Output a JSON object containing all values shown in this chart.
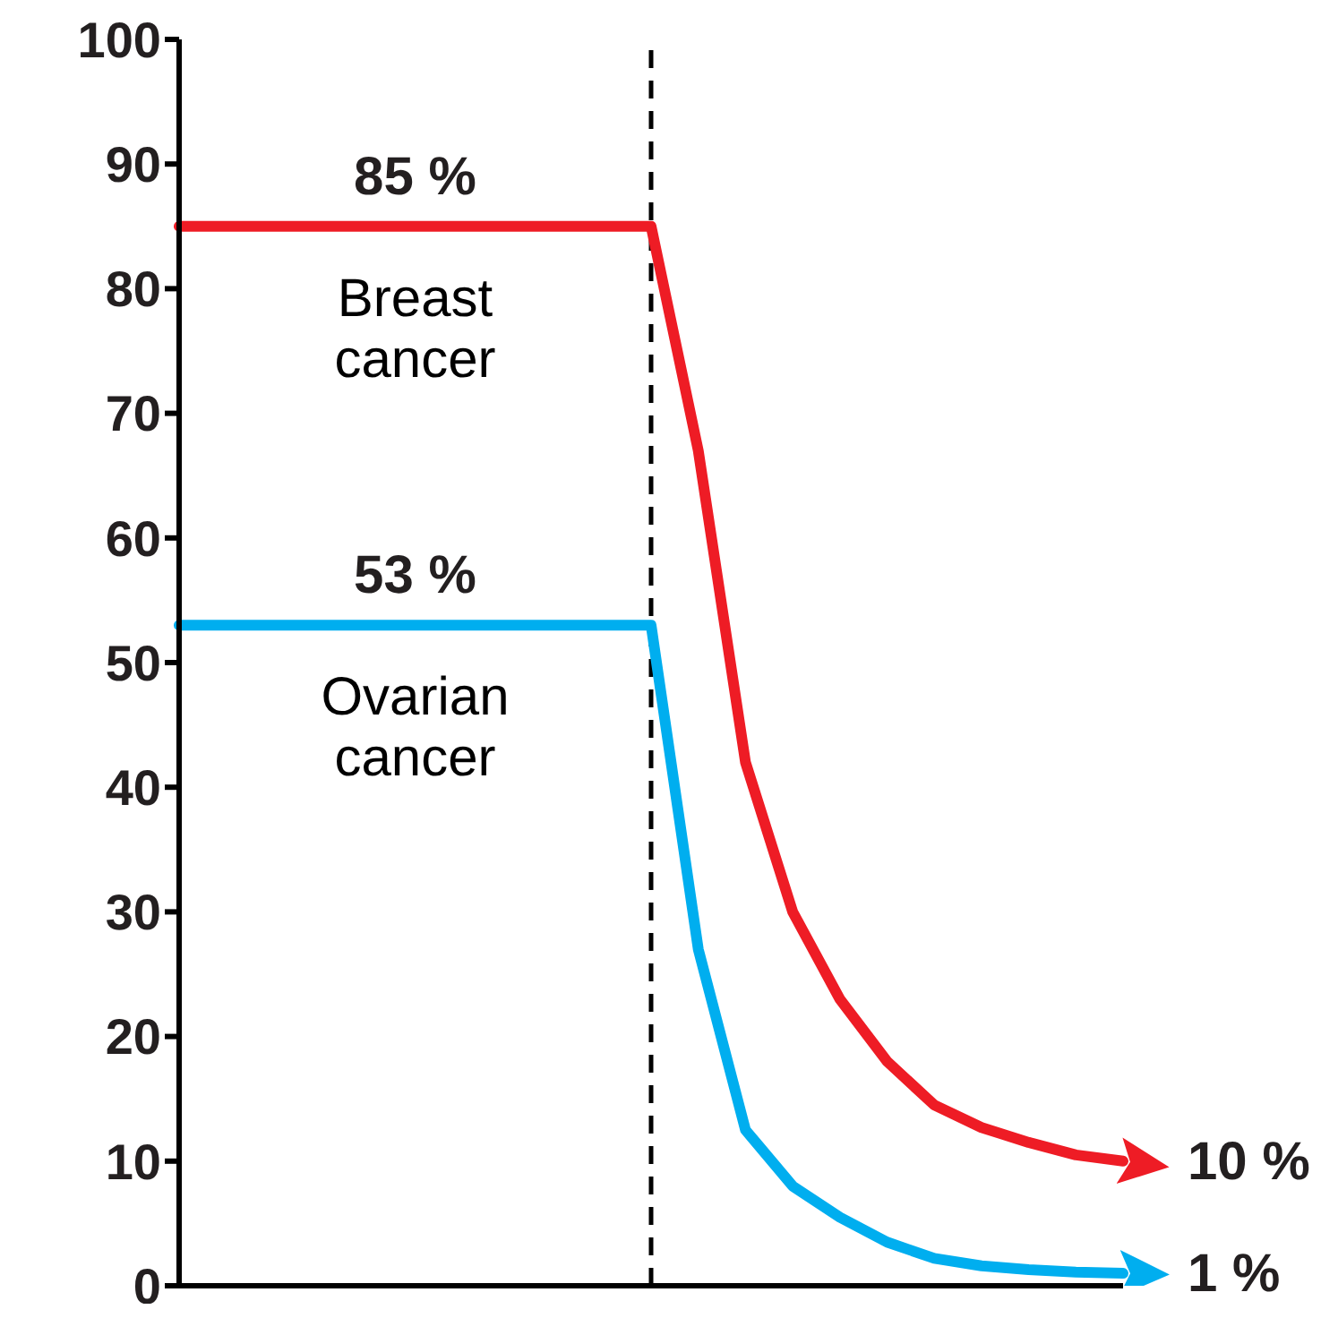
{
  "chart_data": {
    "type": "line",
    "categories": [
      null,
      null,
      null,
      null,
      null,
      null,
      null,
      null,
      null,
      null,
      null,
      null,
      null,
      null,
      null,
      null,
      null,
      null,
      null,
      null,
      null
    ],
    "ylim": [
      0,
      100
    ],
    "yticks": [
      0,
      10,
      20,
      30,
      40,
      50,
      60,
      70,
      80,
      90,
      100
    ],
    "tick_labels": "y",
    "grid": false,
    "legend": false,
    "marker": "none",
    "line_style": "solid",
    "series": [
      {
        "name": "Breast cancer",
        "color": "#ee1c25",
        "values": [
          85,
          85,
          85,
          85,
          85,
          85,
          85,
          85,
          85,
          85,
          85,
          67,
          42,
          30,
          23,
          18,
          14.5,
          12.7,
          11.5,
          10.5,
          10
        ],
        "value_labels": [
          null,
          null,
          null,
          null,
          null,
          "85 %",
          null,
          null,
          null,
          null,
          null,
          null,
          null,
          null,
          null,
          null,
          null,
          null,
          null,
          null,
          "10 %"
        ]
      },
      {
        "name": "Ovarian cancer",
        "color": "#00aeef",
        "values": [
          53,
          53,
          53,
          53,
          53,
          53,
          53,
          53,
          53,
          53,
          53,
          27,
          12.5,
          8,
          5.5,
          3.5,
          2.2,
          1.6,
          1.3,
          1.1,
          1
        ],
        "value_labels": [
          null,
          null,
          null,
          null,
          null,
          "53 %",
          null,
          null,
          null,
          null,
          null,
          null,
          null,
          null,
          null,
          null,
          null,
          null,
          null,
          null,
          "1 %"
        ]
      }
    ]
  }
}
